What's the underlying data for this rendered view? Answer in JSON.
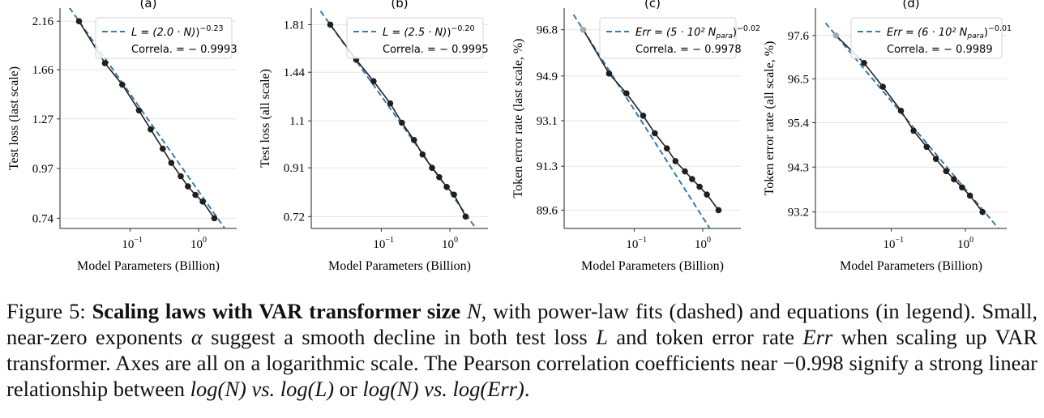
{
  "chart_data": [
    {
      "type": "line",
      "panel_label": "(a)",
      "xlabel": "Model Parameters (Billion)",
      "ylabel": "Test loss (last scale)",
      "xscale": "log",
      "yscale": "log",
      "xlim": [
        0.0095,
        3.6
      ],
      "ylim": [
        0.7,
        2.32
      ],
      "x_ticks": [
        {
          "value": 0.1,
          "base": "10",
          "exp": "−1"
        },
        {
          "value": 1,
          "base": "10",
          "exp": "0"
        }
      ],
      "y_ticks": [
        2.16,
        1.66,
        1.27,
        0.97,
        0.74
      ],
      "grid": true,
      "legend_position": "top-right",
      "legend": {
        "fit_label": "L = (2.0 · N)",
        "fit_exponent": "−0.23",
        "corr_label": "Correla. = − 0.9993"
      },
      "fit": {
        "coef": 2.0,
        "exponent": -0.23
      },
      "series": [
        {
          "name": "data",
          "x": [
            0.018,
            0.043,
            0.077,
            0.135,
            0.2,
            0.3,
            0.4,
            0.55,
            0.7,
            0.9,
            1.15,
            1.7
          ],
          "y": [
            2.16,
            1.72,
            1.53,
            1.33,
            1.2,
            1.08,
            1.0,
            0.93,
            0.88,
            0.84,
            0.81,
            0.74
          ]
        }
      ]
    },
    {
      "type": "line",
      "panel_label": "(b)",
      "xlabel": "Model Parameters (Billion)",
      "ylabel": "Test loss (all scale)",
      "xscale": "log",
      "yscale": "log",
      "xlim": [
        0.0095,
        3.6
      ],
      "ylim": [
        0.68,
        1.96
      ],
      "x_ticks": [
        {
          "value": 0.1,
          "base": "10",
          "exp": "−1"
        },
        {
          "value": 1,
          "base": "10",
          "exp": "0"
        }
      ],
      "y_ticks": [
        1.81,
        1.44,
        1.14,
        0.91,
        0.72
      ],
      "grid": true,
      "legend_position": "top-right",
      "legend": {
        "fit_label": "L = (2.5 · N)",
        "fit_exponent": "−0.20",
        "corr_label": "Correla. = − 0.9995"
      },
      "fit": {
        "coef": 2.5,
        "exponent": -0.2
      },
      "series": [
        {
          "name": "data",
          "x": [
            0.018,
            0.043,
            0.077,
            0.135,
            0.2,
            0.3,
            0.4,
            0.55,
            0.7,
            0.9,
            1.15,
            1.7
          ],
          "y": [
            1.81,
            1.53,
            1.38,
            1.24,
            1.13,
            1.04,
            0.97,
            0.91,
            0.87,
            0.83,
            0.8,
            0.72
          ]
        }
      ]
    },
    {
      "type": "line",
      "panel_label": "(c)",
      "xlabel": "Model Parameters (Billion)",
      "ylabel": "Token error rate (last scale, %)",
      "xscale": "log",
      "yscale": "log",
      "xlim": [
        0.0095,
        3.6
      ],
      "ylim": [
        88.9,
        97.7
      ],
      "x_ticks": [
        {
          "value": 0.1,
          "base": "10",
          "exp": "−1"
        },
        {
          "value": 1,
          "base": "10",
          "exp": "0"
        }
      ],
      "y_ticks": [
        96.8,
        94.9,
        93.1,
        91.3,
        89.6
      ],
      "grid": true,
      "legend_position": "top-right",
      "legend": {
        "fit_label": "Err = (5 · 10² N",
        "fit_subscript": "para",
        "fit_exponent": "−0.02",
        "corr_label": "Correla. = − 0.9978"
      },
      "fit": {
        "coef": 500,
        "exponent": -0.02
      },
      "series": [
        {
          "name": "data",
          "x": [
            0.018,
            0.043,
            0.077,
            0.135,
            0.2,
            0.3,
            0.4,
            0.55,
            0.7,
            0.9,
            1.15,
            1.7
          ],
          "y": [
            96.8,
            95.0,
            94.2,
            93.3,
            92.6,
            92.0,
            91.5,
            91.1,
            90.8,
            90.5,
            90.2,
            89.6
          ]
        }
      ]
    },
    {
      "type": "line",
      "panel_label": "(d)",
      "xlabel": "Model Parameters (Billion)",
      "ylabel": "Token error rate (all scale, %)",
      "xscale": "log",
      "yscale": "log",
      "xlim": [
        0.0095,
        3.6
      ],
      "ylim": [
        92.8,
        98.3
      ],
      "x_ticks": [
        {
          "value": 0.1,
          "base": "10",
          "exp": "−1"
        },
        {
          "value": 1,
          "base": "10",
          "exp": "0"
        }
      ],
      "y_ticks": [
        97.6,
        96.5,
        95.4,
        94.3,
        93.2
      ],
      "grid": true,
      "legend_position": "top-right",
      "legend": {
        "fit_label": "Err = (6 · 10² N",
        "fit_subscript": "para",
        "fit_exponent": "−0.01",
        "corr_label": "Correla. = − 0.9989"
      },
      "fit": {
        "coef": 600,
        "exponent": -0.01
      },
      "series": [
        {
          "name": "data",
          "x": [
            0.018,
            0.043,
            0.077,
            0.135,
            0.2,
            0.3,
            0.4,
            0.55,
            0.7,
            0.9,
            1.15,
            1.7
          ],
          "y": [
            97.6,
            96.9,
            96.3,
            95.7,
            95.2,
            94.8,
            94.5,
            94.2,
            94.0,
            93.8,
            93.6,
            93.2
          ]
        }
      ]
    }
  ],
  "caption": {
    "prefix": "Figure 5: ",
    "bold": "Scaling laws with VAR transformer size ",
    "bold_var": "N",
    "rest_1": ", with power-law fits (dashed) and equations (in legend). Small, near-zero exponents ",
    "alpha": "α",
    "rest_2": " suggest a smooth decline in both test loss ",
    "L": "L",
    "rest_3": " and token error rate ",
    "Err": "Err",
    "rest_4": " when scaling up VAR transformer. Axes are all on a logarithmic scale. The Pearson correlation coefficients near ",
    "coef": "−0.998",
    "rest_5": " signify a strong linear relationship between ",
    "expr_1": "log(N) vs. log(L)",
    "or": " or ",
    "expr_2": "log(N) vs. log(Err)",
    "end": "."
  },
  "colors": {
    "fit_line": "#3b7aa8",
    "data_line": "#222222",
    "marker": "#1f1f1f",
    "first_marker_light": "#a8a8a8",
    "grid": "#e4e4e4"
  }
}
